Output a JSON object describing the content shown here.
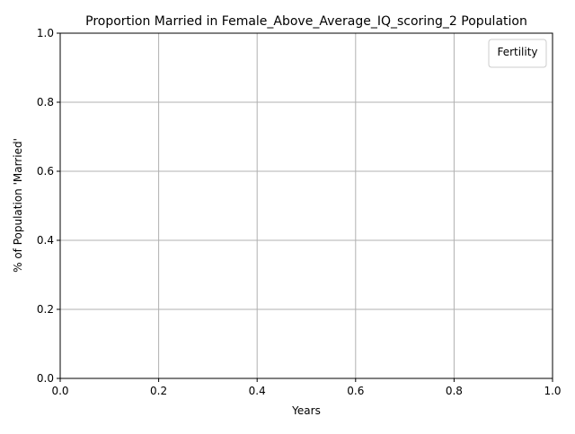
{
  "chart_data": {
    "type": "line",
    "title": "Proportion Married in Female_Above_Average_IQ_scoring_2 Population",
    "xlabel": "Years",
    "ylabel": "% of Population 'Married'",
    "xlim": [
      0.0,
      1.0
    ],
    "ylim": [
      0.0,
      1.0
    ],
    "x_ticks": [
      "0.0",
      "0.2",
      "0.4",
      "0.6",
      "0.8",
      "1.0"
    ],
    "y_ticks": [
      "0.0",
      "0.2",
      "0.4",
      "0.6",
      "0.8",
      "1.0"
    ],
    "grid": true,
    "legend": {
      "title": "Fertility",
      "placement": "top-right",
      "entries": []
    },
    "series": []
  },
  "colors": {
    "grid": "#b0b0b0",
    "axis": "#000000",
    "legend_border": "#cccccc"
  }
}
